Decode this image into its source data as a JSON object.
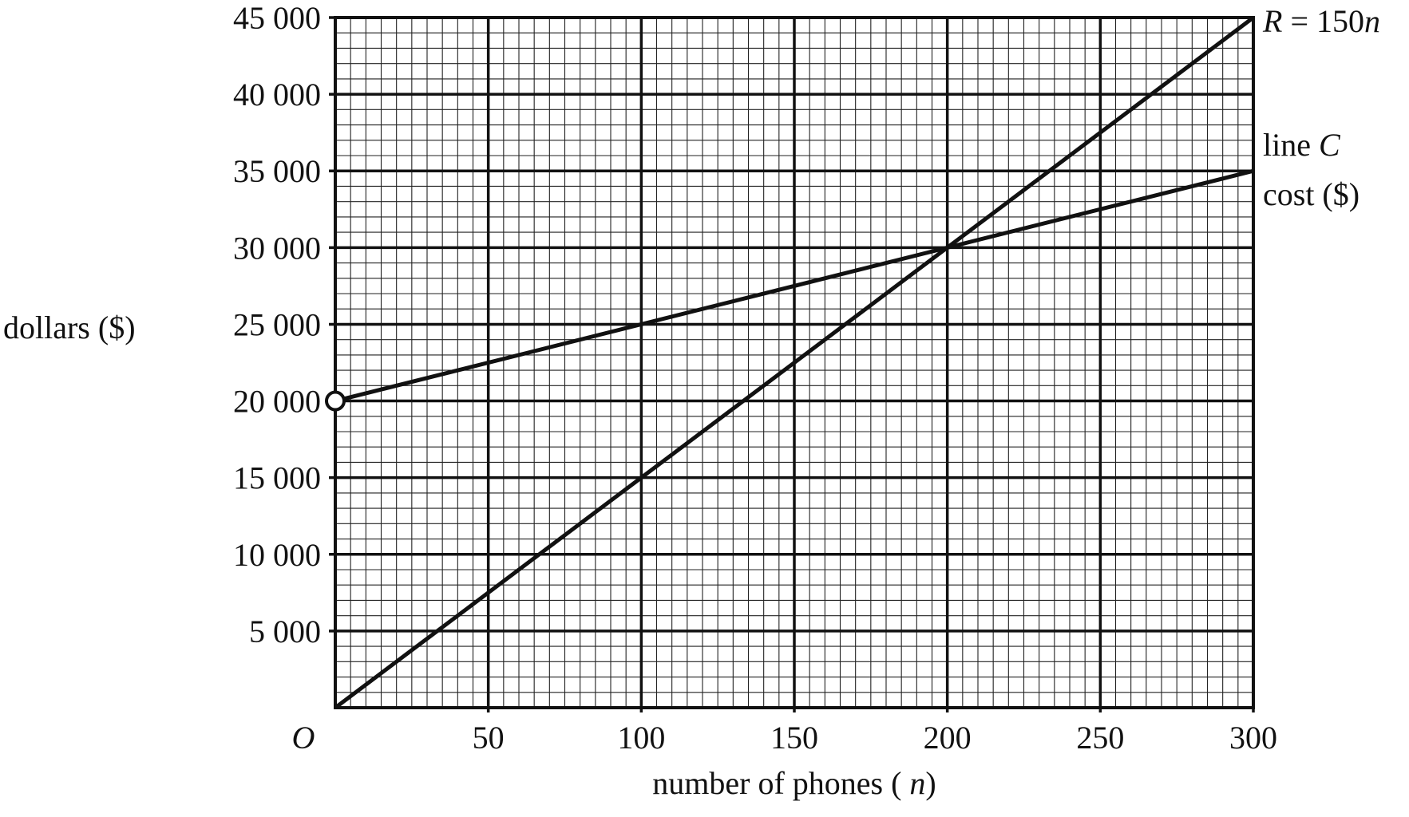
{
  "chart_data": {
    "type": "line",
    "xlabel": "number of phones (n)",
    "ylabel": "dollars ($)",
    "origin_label": "O",
    "xlim": [
      0,
      300
    ],
    "ylim": [
      0,
      45000
    ],
    "x_ticks": [
      50,
      100,
      150,
      200,
      250,
      300
    ],
    "x_tick_labels": [
      "50",
      "100",
      "150",
      "200",
      "250",
      "300"
    ],
    "y_ticks": [
      5000,
      10000,
      15000,
      20000,
      25000,
      30000,
      35000,
      40000,
      45000
    ],
    "y_tick_labels": [
      "5 000",
      "10 000",
      "15 000",
      "20 000",
      "25 000",
      "30 000",
      "35 000",
      "40 000",
      "45 000"
    ],
    "grid": true,
    "series": [
      {
        "name": "R = 150n",
        "label_main": "R",
        "label_rest": " = 150",
        "label_var": "n",
        "x": [
          0,
          300
        ],
        "y": [
          0,
          45000
        ]
      },
      {
        "name": "line C cost ($)",
        "label_line1_a": "line ",
        "label_line1_b": "C",
        "label_line2": "cost ($)",
        "x": [
          0,
          300
        ],
        "y": [
          20000,
          35000
        ]
      }
    ],
    "annotations": [
      {
        "type": "open-circle",
        "x": 0,
        "y": 20000
      }
    ]
  }
}
